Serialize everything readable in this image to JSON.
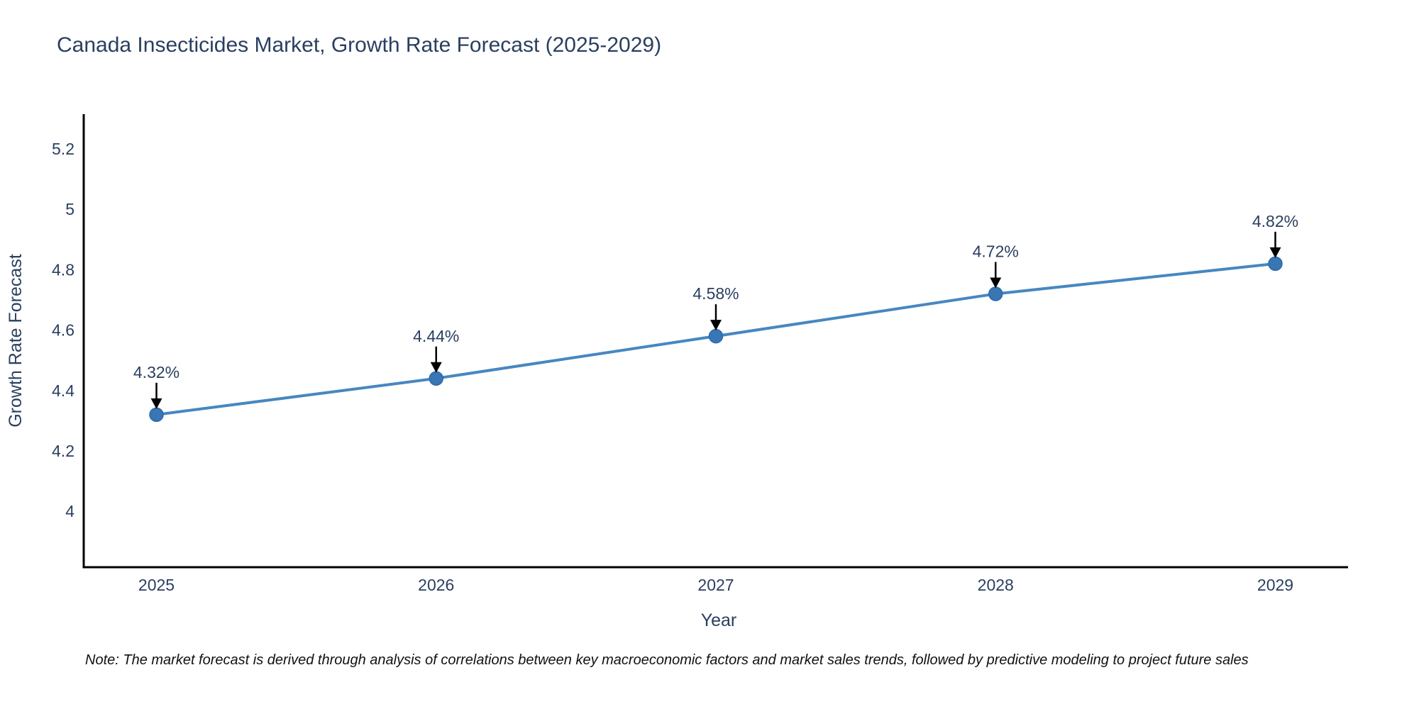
{
  "header": {
    "title": "Canada Insecticides Market, Growth Rate Forecast (2025-2029)",
    "title_color": "#2a3f5f"
  },
  "note": {
    "text": "Note: The market forecast is derived through analysis of correlations between key macroeconomic factors and market sales trends, followed by predictive modeling to project future sales"
  },
  "chart_data": {
    "type": "line",
    "title": "Canada Insecticides Market, Growth Rate Forecast (2025-2029)",
    "xlabel": "Year",
    "ylabel": "Growth Rate Forecast",
    "x": [
      2025,
      2026,
      2027,
      2028,
      2029
    ],
    "series": [
      {
        "name": "Growth Rate Forecast",
        "values": [
          4.32,
          4.44,
          4.58,
          4.72,
          4.82
        ]
      }
    ],
    "point_labels": [
      "4.32%",
      "4.44%",
      "4.58%",
      "4.72%",
      "4.82%"
    ],
    "x_ticks": [
      "2025",
      "2026",
      "2027",
      "2028",
      "2029"
    ],
    "y_ticks": [
      "4",
      "4.2",
      "4.4",
      "4.6",
      "4.8",
      "5",
      "5.2"
    ],
    "y_tick_values": [
      4,
      4.2,
      4.4,
      4.6,
      4.8,
      5,
      5.2
    ],
    "xlim": [
      2024.74,
      2029.26
    ],
    "ylim": [
      3.815,
      5.315
    ],
    "grid": false,
    "legend": "none",
    "colors": {
      "line": "#4787c0",
      "marker": "#3876b4",
      "marker_edge": "#2f6ba8",
      "axis": "#000000",
      "tick_label": "#2a3f5f",
      "annotation_text": "#2a3f5f",
      "annotation_arrow": "#000000"
    }
  }
}
